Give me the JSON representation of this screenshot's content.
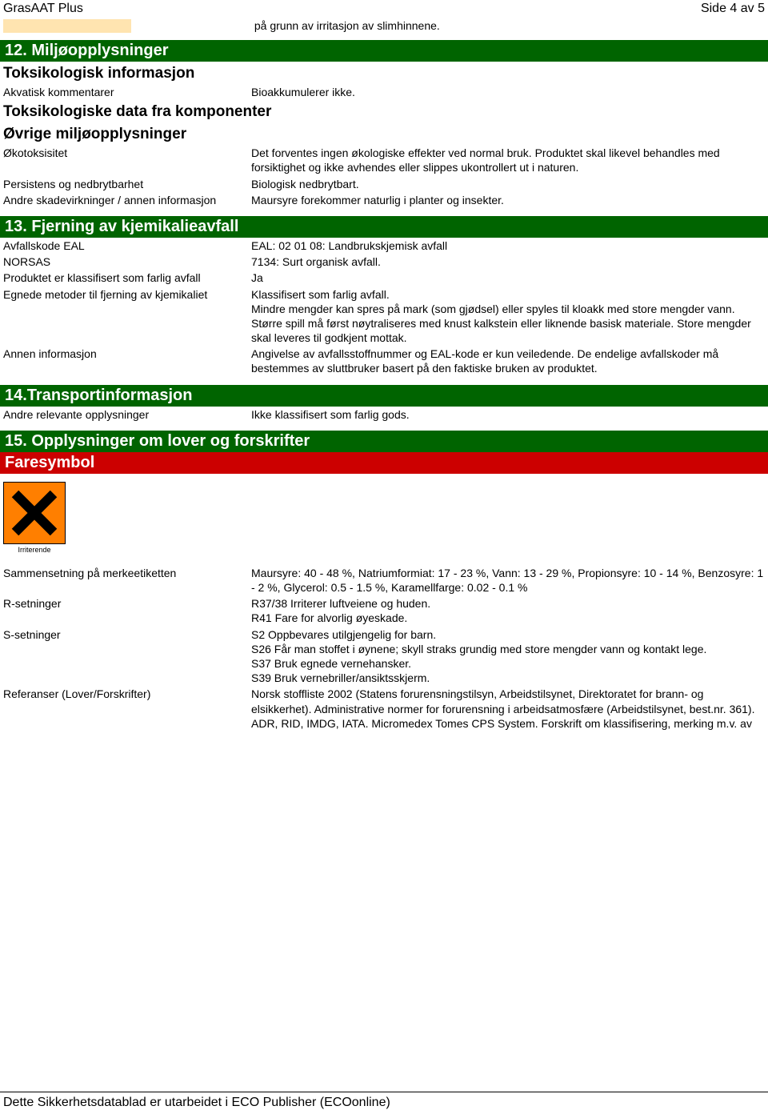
{
  "header": {
    "product_name": "GrasAAT Plus",
    "page_indicator": "Side 4 av 5"
  },
  "intro_indent_text": "på grunn av irritasjon av slimhinnene.",
  "section12": {
    "title": "12. Miljøopplysninger",
    "sub1": "Toksikologisk informasjon",
    "rows1": {
      "akvatisk_label": "Akvatisk kommentarer",
      "akvatisk_value": "Bioakkumulerer ikke."
    },
    "sub2": "Toksikologiske data fra komponenter",
    "sub3": "Øvrige miljøopplysninger",
    "rows3": {
      "oko_label": "Økotoksisitet",
      "oko_value": "Det forventes ingen økologiske effekter ved normal bruk. Produktet skal likevel behandles med forsiktighet og ikke avhendes eller slippes ukontrollert ut i naturen.",
      "pers_label": "Persistens og nedbrytbarhet",
      "pers_value": "Biologisk nedbrytbart.",
      "andre_label": "Andre skadevirkninger / annen informasjon",
      "andre_value": "Maursyre forekommer naturlig i planter og insekter."
    }
  },
  "section13": {
    "title": "13. Fjerning av kjemikalieavfall",
    "rows": {
      "eal_label": "Avfallskode EAL",
      "eal_value": "EAL: 02 01 08: Landbrukskjemisk avfall",
      "norsas_label": "NORSAS",
      "norsas_value": "7134: Surt organisk avfall.",
      "farlig_label": "Produktet er klassifisert som farlig avfall",
      "farlig_value": "Ja",
      "egnede_label": "Egnede metoder til fjerning av kjemikaliet",
      "egnede_value": "Klassifisert som farlig avfall.\nMindre mengder kan spres på mark (som gjødsel) eller spyles til kloakk med store mengder vann. Større spill må først nøytraliseres med knust kalkstein eller liknende basisk materiale. Store mengder skal leveres til godkjent mottak.",
      "annen_label": "Annen informasjon",
      "annen_value": "Angivelse av avfallsstoffnummer og EAL-kode er kun veiledende. De endelige avfallskoder må bestemmes av sluttbruker basert på den faktiske bruken av produktet."
    }
  },
  "section14": {
    "title": "14.Transportinformasjon",
    "rows": {
      "rel_label": "Andre relevante opplysninger",
      "rel_value": "Ikke klassifisert som farlig gods."
    }
  },
  "section15": {
    "title": "15. Opplysninger om lover og forskrifter",
    "subtitle": "Faresymbol",
    "hazard_caption": "Irriterende",
    "rows": {
      "sammen_label": "Sammensetning på merkeetiketten",
      "sammen_value": "Maursyre: 40 - 48 %, Natriumformiat: 17 - 23 %, Vann: 13 - 29 %, Propionsyre: 10 - 14 %, Benzosyre: 1 - 2 %, Glycerol: 0.5 - 1.5 %, Karamellfarge: 0.02 - 0.1 %",
      "r_label": "R-setninger",
      "r_value": "R37/38 Irriterer luftveiene og huden.\nR41 Fare for alvorlig øyeskade.",
      "s_label": "S-setninger",
      "s_value": "S2 Oppbevares utilgjengelig for barn.\nS26 Får man stoffet i øynene; skyll straks grundig med store mengder vann og kontakt lege.\nS37 Bruk egnede vernehansker.\nS39 Bruk vernebriller/ansiktsskjerm.",
      "ref_label": "Referanser (Lover/Forskrifter)",
      "ref_value": "Norsk stoffliste 2002 (Statens forurensningstilsyn, Arbeidstilsynet, Direktoratet for brann- og elsikkerhet). Administrative normer for forurensning i arbeidsatmosfære (Arbeidstilsynet, best.nr. 361). ADR, RID, IMDG, IATA. Micromedex Tomes CPS System. Forskrift om klassifisering, merking m.v. av"
    }
  },
  "footer_text": "Dette Sikkerhetsdatablad er utarbeidet i ECO Publisher (ECOonline)",
  "colors": {
    "green_bar": "#006400",
    "red_bar": "#cc0000",
    "hazard_orange": "#ff7f00",
    "indent_cell_bg": "#ffe4b0"
  }
}
